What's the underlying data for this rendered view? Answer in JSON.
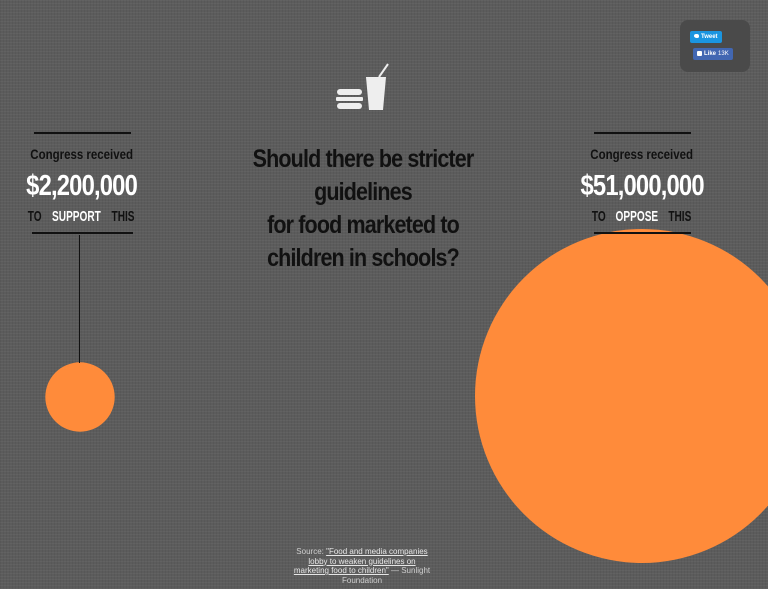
{
  "social": {
    "tweet_label": "Tweet",
    "like_label": "Like",
    "like_count": "13K"
  },
  "icon": "burger-and-drink-icon",
  "question": {
    "line1": "Should there be stricter guidelines",
    "line2": "for food marketed to",
    "line3": "children in schools?"
  },
  "support": {
    "received": "Congress received",
    "amount": "$2,200,000",
    "to": "TO",
    "verb": "SUPPORT",
    "this": "THIS"
  },
  "oppose": {
    "received": "Congress received",
    "amount": "$51,000,000",
    "to": "TO",
    "verb": "OPPOSE",
    "this": "THIS"
  },
  "source": {
    "prefix": "Source:",
    "link": "\"Food and media companies lobby to weaken guidelines on marketing food to children\"",
    "suffix": "— Sunlight Foundation"
  },
  "colors": {
    "bubble": "#ff8b3a",
    "background": "#5c5c5c",
    "highlight": "#ffffff"
  },
  "chart_data": {
    "type": "bubble",
    "categories": [
      "SUPPORT",
      "OPPOSE"
    ],
    "values": [
      2200000,
      51000000
    ]
  }
}
